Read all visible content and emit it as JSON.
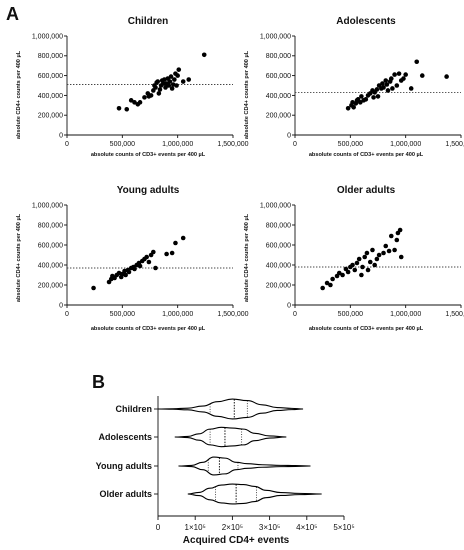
{
  "panel_labels": {
    "a": "A",
    "b": "B"
  },
  "scatter_axis": {
    "xlabel": "absolute counts of CD3+ events per 400 µL",
    "ylabel": "absolute CD4+ counts per 400 µL",
    "x_ticks": [
      "0",
      "500,000",
      "1,000,000",
      "1,500,000"
    ],
    "y_ticks": [
      "0",
      "200,000",
      "400,000",
      "600,000",
      "800,000",
      "1,000,000"
    ]
  },
  "violin_axis": {
    "xlabel": "Acquired CD4+ events",
    "x_ticks": [
      "0",
      "1×10⁵",
      "2×10⁵",
      "3×10⁵",
      "4×10⁵",
      "5×10⁵"
    ]
  },
  "colors": {
    "points": "#000000",
    "outline": "#000000",
    "reference_line": "#444444"
  },
  "chart_data": [
    {
      "type": "scatter",
      "title": "Children",
      "xlim": [
        0,
        1500000
      ],
      "ylim": [
        0,
        1000000
      ],
      "reference_line_y": 510000,
      "points": [
        [
          470000,
          270000
        ],
        [
          540000,
          260000
        ],
        [
          580000,
          350000
        ],
        [
          610000,
          330000
        ],
        [
          640000,
          310000
        ],
        [
          660000,
          330000
        ],
        [
          700000,
          380000
        ],
        [
          730000,
          420000
        ],
        [
          740000,
          390000
        ],
        [
          760000,
          400000
        ],
        [
          780000,
          450000
        ],
        [
          790000,
          500000
        ],
        [
          800000,
          480000
        ],
        [
          810000,
          530000
        ],
        [
          820000,
          540000
        ],
        [
          830000,
          420000
        ],
        [
          840000,
          460000
        ],
        [
          850000,
          500000
        ],
        [
          860000,
          550000
        ],
        [
          870000,
          520000
        ],
        [
          880000,
          560000
        ],
        [
          890000,
          480000
        ],
        [
          900000,
          520000
        ],
        [
          910000,
          570000
        ],
        [
          920000,
          500000
        ],
        [
          930000,
          540000
        ],
        [
          940000,
          590000
        ],
        [
          950000,
          470000
        ],
        [
          960000,
          510000
        ],
        [
          970000,
          560000
        ],
        [
          980000,
          620000
        ],
        [
          990000,
          500000
        ],
        [
          1000000,
          600000
        ],
        [
          1010000,
          660000
        ],
        [
          1050000,
          540000
        ],
        [
          1100000,
          560000
        ],
        [
          1240000,
          810000
        ]
      ]
    },
    {
      "type": "scatter",
      "title": "Adolescents",
      "xlim": [
        0,
        1500000
      ],
      "ylim": [
        0,
        1000000
      ],
      "reference_line_y": 430000,
      "points": [
        [
          480000,
          270000
        ],
        [
          510000,
          300000
        ],
        [
          520000,
          330000
        ],
        [
          530000,
          280000
        ],
        [
          550000,
          320000
        ],
        [
          560000,
          350000
        ],
        [
          570000,
          360000
        ],
        [
          590000,
          330000
        ],
        [
          600000,
          390000
        ],
        [
          620000,
          350000
        ],
        [
          640000,
          360000
        ],
        [
          660000,
          400000
        ],
        [
          680000,
          420000
        ],
        [
          700000,
          450000
        ],
        [
          710000,
          380000
        ],
        [
          720000,
          430000
        ],
        [
          740000,
          460000
        ],
        [
          750000,
          390000
        ],
        [
          760000,
          500000
        ],
        [
          780000,
          470000
        ],
        [
          790000,
          520000
        ],
        [
          800000,
          480000
        ],
        [
          820000,
          550000
        ],
        [
          830000,
          510000
        ],
        [
          840000,
          450000
        ],
        [
          860000,
          540000
        ],
        [
          870000,
          570000
        ],
        [
          880000,
          470000
        ],
        [
          900000,
          610000
        ],
        [
          920000,
          500000
        ],
        [
          940000,
          620000
        ],
        [
          960000,
          550000
        ],
        [
          980000,
          570000
        ],
        [
          1000000,
          610000
        ],
        [
          1050000,
          470000
        ],
        [
          1100000,
          740000
        ],
        [
          1150000,
          600000
        ],
        [
          1370000,
          590000
        ]
      ]
    },
    {
      "type": "scatter",
      "title": "Young adults",
      "xlim": [
        0,
        1500000
      ],
      "ylim": [
        0,
        1000000
      ],
      "reference_line_y": 370000,
      "points": [
        [
          240000,
          170000
        ],
        [
          380000,
          230000
        ],
        [
          400000,
          260000
        ],
        [
          410000,
          290000
        ],
        [
          430000,
          270000
        ],
        [
          450000,
          300000
        ],
        [
          470000,
          320000
        ],
        [
          490000,
          280000
        ],
        [
          500000,
          310000
        ],
        [
          520000,
          340000
        ],
        [
          530000,
          300000
        ],
        [
          550000,
          350000
        ],
        [
          560000,
          330000
        ],
        [
          580000,
          370000
        ],
        [
          600000,
          380000
        ],
        [
          610000,
          360000
        ],
        [
          630000,
          400000
        ],
        [
          650000,
          420000
        ],
        [
          660000,
          390000
        ],
        [
          680000,
          440000
        ],
        [
          700000,
          460000
        ],
        [
          720000,
          480000
        ],
        [
          740000,
          430000
        ],
        [
          760000,
          500000
        ],
        [
          780000,
          530000
        ],
        [
          800000,
          370000
        ],
        [
          900000,
          510000
        ],
        [
          950000,
          520000
        ],
        [
          980000,
          620000
        ],
        [
          1050000,
          670000
        ]
      ]
    },
    {
      "type": "scatter",
      "title": "Older adults",
      "xlim": [
        0,
        1500000
      ],
      "ylim": [
        0,
        1000000
      ],
      "reference_line_y": 380000,
      "points": [
        [
          250000,
          170000
        ],
        [
          290000,
          220000
        ],
        [
          320000,
          200000
        ],
        [
          340000,
          260000
        ],
        [
          380000,
          290000
        ],
        [
          400000,
          320000
        ],
        [
          430000,
          300000
        ],
        [
          460000,
          360000
        ],
        [
          480000,
          330000
        ],
        [
          500000,
          380000
        ],
        [
          520000,
          400000
        ],
        [
          540000,
          350000
        ],
        [
          560000,
          420000
        ],
        [
          580000,
          460000
        ],
        [
          600000,
          300000
        ],
        [
          610000,
          380000
        ],
        [
          630000,
          480000
        ],
        [
          650000,
          520000
        ],
        [
          660000,
          350000
        ],
        [
          680000,
          430000
        ],
        [
          700000,
          550000
        ],
        [
          720000,
          400000
        ],
        [
          740000,
          460000
        ],
        [
          760000,
          500000
        ],
        [
          800000,
          520000
        ],
        [
          820000,
          590000
        ],
        [
          850000,
          540000
        ],
        [
          870000,
          690000
        ],
        [
          900000,
          550000
        ],
        [
          920000,
          650000
        ],
        [
          930000,
          720000
        ],
        [
          950000,
          750000
        ],
        [
          960000,
          480000
        ]
      ]
    },
    {
      "type": "violin",
      "xlabel": "Acquired CD4+ events",
      "xlim": [
        0,
        500000
      ],
      "categories": [
        "Children",
        "Adolescents",
        "Young adults",
        "Older adults"
      ],
      "series": [
        {
          "category": "Children",
          "min": 0,
          "q1": 140000,
          "median": 205000,
          "q3": 240000,
          "max": 390000,
          "density": [
            [
              0,
              0.0
            ],
            [
              40000,
              0.02
            ],
            [
              80000,
              0.08
            ],
            [
              120000,
              0.28
            ],
            [
              160000,
              0.7
            ],
            [
              200000,
              0.95
            ],
            [
              240000,
              0.8
            ],
            [
              280000,
              0.4
            ],
            [
              320000,
              0.14
            ],
            [
              360000,
              0.06
            ],
            [
              390000,
              0.0
            ]
          ]
        },
        {
          "category": "Adolescents",
          "min": 45000,
          "q1": 140000,
          "median": 180000,
          "q3": 225000,
          "max": 345000,
          "density": [
            [
              45000,
              0.0
            ],
            [
              80000,
              0.05
            ],
            [
              110000,
              0.3
            ],
            [
              140000,
              0.75
            ],
            [
              170000,
              0.92
            ],
            [
              200000,
              0.85
            ],
            [
              230000,
              0.75
            ],
            [
              260000,
              0.35
            ],
            [
              300000,
              0.1
            ],
            [
              345000,
              0.0
            ]
          ]
        },
        {
          "category": "Young adults",
          "min": 55000,
          "q1": 135000,
          "median": 165000,
          "q3": 215000,
          "max": 410000,
          "density": [
            [
              55000,
              0.0
            ],
            [
              90000,
              0.05
            ],
            [
              120000,
              0.35
            ],
            [
              150000,
              0.85
            ],
            [
              180000,
              0.75
            ],
            [
              210000,
              0.35
            ],
            [
              240000,
              0.22
            ],
            [
              280000,
              0.12
            ],
            [
              330000,
              0.06
            ],
            [
              370000,
              0.04
            ],
            [
              410000,
              0.0
            ]
          ]
        },
        {
          "category": "Older adults",
          "min": 80000,
          "q1": 155000,
          "median": 210000,
          "q3": 265000,
          "max": 440000,
          "density": [
            [
              80000,
              0.0
            ],
            [
              110000,
              0.15
            ],
            [
              140000,
              0.55
            ],
            [
              170000,
              0.85
            ],
            [
              200000,
              0.95
            ],
            [
              230000,
              0.9
            ],
            [
              260000,
              0.72
            ],
            [
              290000,
              0.35
            ],
            [
              330000,
              0.14
            ],
            [
              380000,
              0.06
            ],
            [
              440000,
              0.0
            ]
          ]
        }
      ]
    }
  ]
}
